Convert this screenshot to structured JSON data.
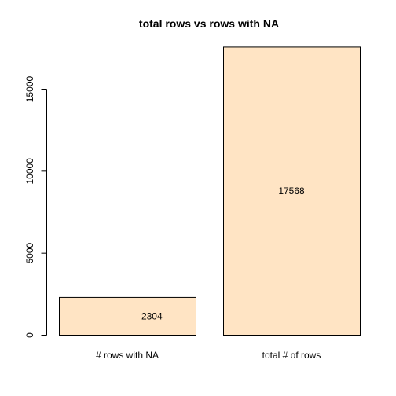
{
  "chart_data": {
    "type": "bar",
    "title": "total rows vs rows with NA",
    "xlabel": "",
    "ylabel": "",
    "categories": [
      "# rows with NA",
      "total # of rows"
    ],
    "values": [
      2304,
      17568
    ],
    "value_labels": [
      "2304",
      "17568"
    ],
    "y_ticks": [
      0,
      5000,
      10000,
      15000
    ],
    "y_tick_labels": [
      "0",
      "5000",
      "10000",
      "15000"
    ],
    "ylim": [
      0,
      18000
    ],
    "bar_color": "#FFE4C4",
    "grid": false,
    "legend": "none"
  }
}
